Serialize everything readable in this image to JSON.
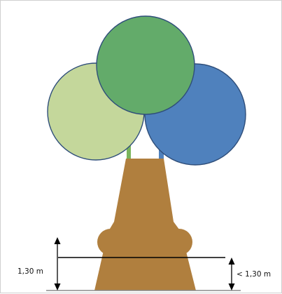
{
  "diagram": {
    "labels": {
      "left_height": "1,30 m",
      "right_height": "< 1,30 m"
    },
    "colors": {
      "canopy_left": "#c4d79b",
      "canopy_center": "#63ab6a",
      "canopy_right": "#4f81bd",
      "canopy_outline": "#2f4e7a",
      "trunk": "#b07f3e",
      "branch_green": "#7ab55c",
      "branch_blue": "#4f81bd",
      "measure_line": "#000000",
      "ground": "#8c8c8c"
    }
  }
}
